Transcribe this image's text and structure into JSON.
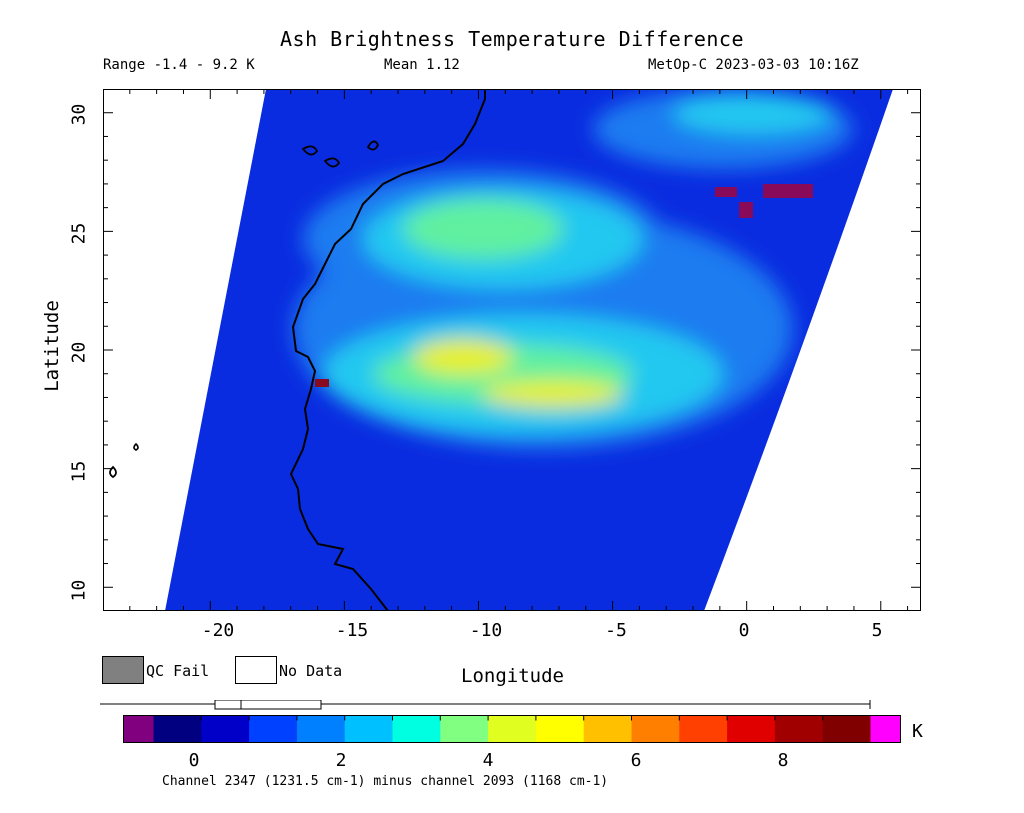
{
  "header": {
    "title": "Ash Brightness Temperature Difference",
    "range": "Range -1.4 - 9.2 K",
    "mean": "Mean 1.12",
    "satellite": "MetOp-C 2023-03-03 10:16Z"
  },
  "axes": {
    "x_label": "Longitude",
    "y_label": "Latitude",
    "x_ticks": [
      "-20",
      "-15",
      "-10",
      "-5",
      "0",
      "5"
    ],
    "y_ticks": [
      "30",
      "25",
      "20",
      "15",
      "10"
    ],
    "lon_range": [
      -24,
      6.5
    ],
    "lat_range": [
      9,
      31
    ]
  },
  "legend": {
    "qc_fail": "QC Fail",
    "no_data": "No Data",
    "qc_color": "#808080"
  },
  "colorbar": {
    "ticks": [
      "0",
      "2",
      "4",
      "6",
      "8"
    ],
    "unit": "K",
    "range": [
      -1.0,
      9.2
    ],
    "caption": "Channel 2347 (1231.5 cm-1) minus channel 2093 (1168 cm-1)",
    "colors": [
      "#800080",
      "#000080",
      "#0000c8",
      "#0040ff",
      "#0080ff",
      "#00c0ff",
      "#00ffe0",
      "#80ff80",
      "#e0ff20",
      "#ffff00",
      "#ffc000",
      "#ff8000",
      "#ff4000",
      "#e00000",
      "#a00000",
      "#800000",
      "#ff00ff"
    ]
  },
  "swath": {
    "background_color": "#0a2ce0",
    "plume_colors": [
      "#1c7cf0",
      "#20c8f0",
      "#60f0a0",
      "#e8f020"
    ]
  }
}
